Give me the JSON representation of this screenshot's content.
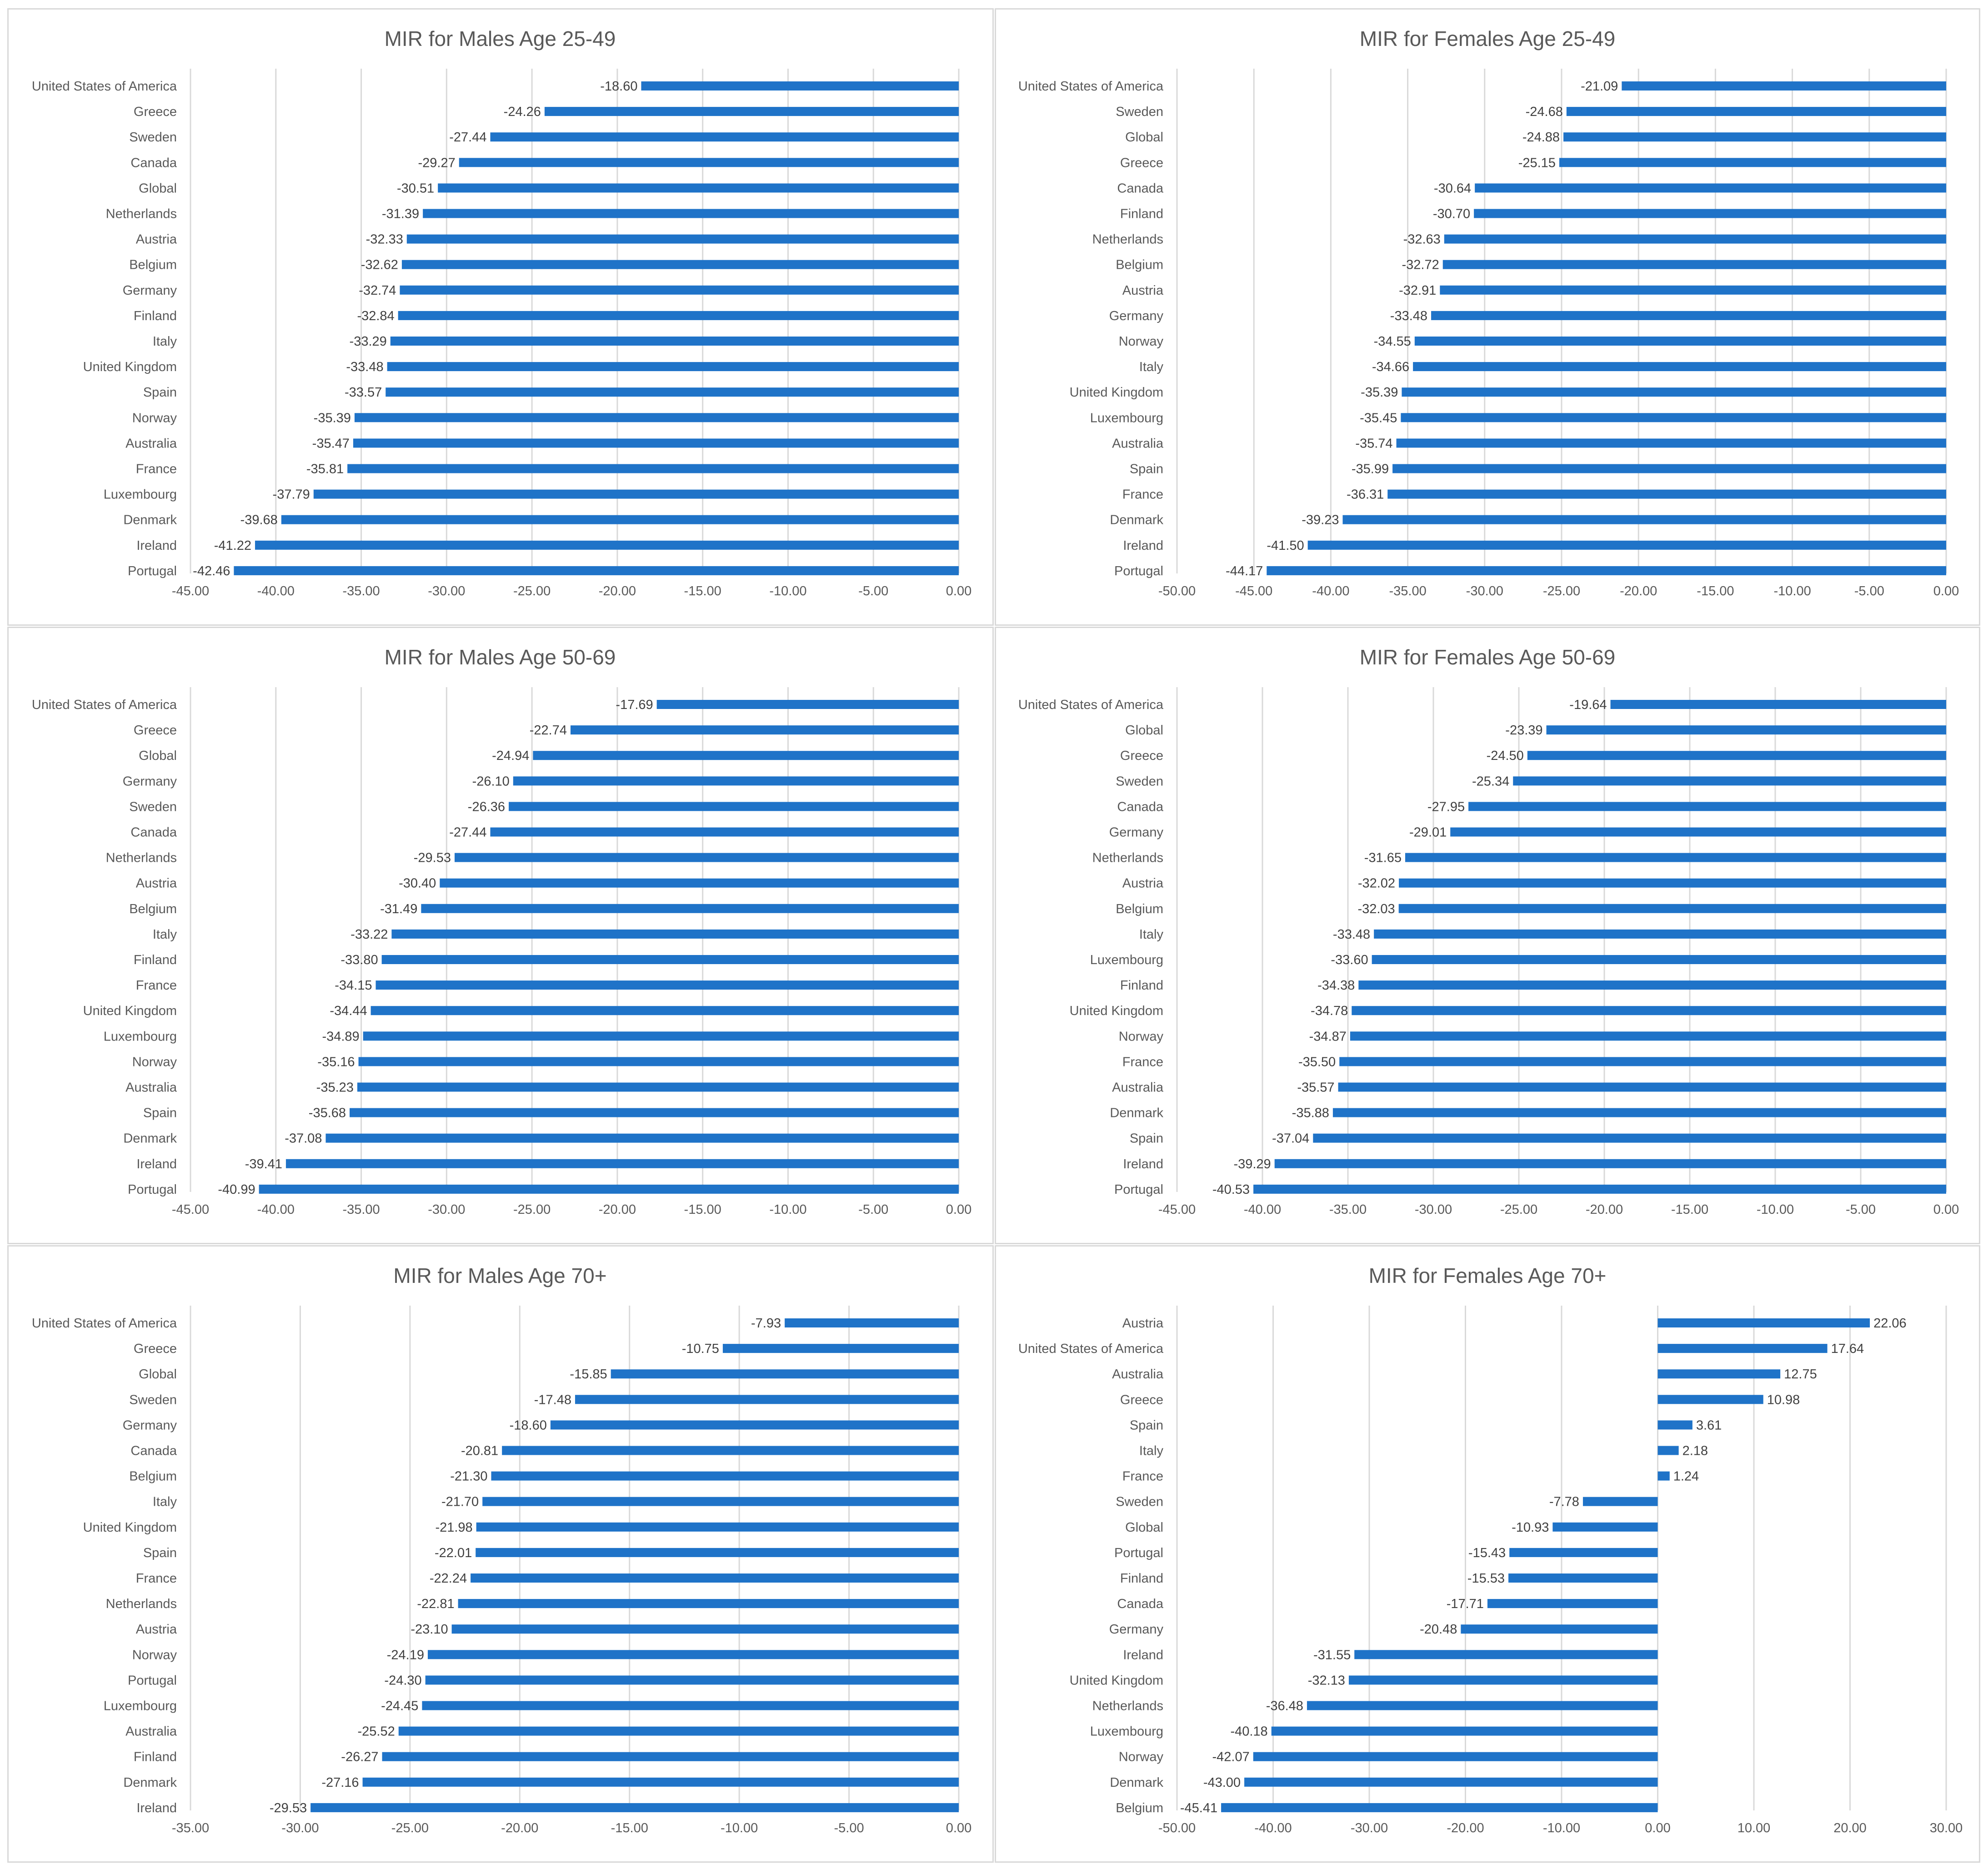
{
  "chart_data": [
    {
      "type": "bar",
      "orientation": "horizontal",
      "title": "MIR for Males Age 25-49",
      "xlim": [
        -45,
        0
      ],
      "ticks": [
        -45,
        -40,
        -35,
        -30,
        -25,
        -20,
        -15,
        -10,
        -5,
        0
      ],
      "tick_labels": [
        "-45.00",
        "-40.00",
        "-35.00",
        "-30.00",
        "-25.00",
        "-20.00",
        "-15.00",
        "-10.00",
        "-5.00",
        "0.00"
      ],
      "grid": true,
      "bar_color": "#1f73c8",
      "categories": [
        "United States of America",
        "Greece",
        "Sweden",
        "Canada",
        "Global",
        "Netherlands",
        "Austria",
        "Belgium",
        "Germany",
        "Finland",
        "Italy",
        "United Kingdom",
        "Spain",
        "Norway",
        "Australia",
        "France",
        "Luxembourg",
        "Denmark",
        "Ireland",
        "Portugal"
      ],
      "values": [
        -18.6,
        -24.26,
        -27.44,
        -29.27,
        -30.51,
        -31.39,
        -32.33,
        -32.62,
        -32.74,
        -32.84,
        -33.29,
        -33.48,
        -33.57,
        -35.39,
        -35.47,
        -35.81,
        -37.79,
        -39.68,
        -41.22,
        -42.46
      ],
      "value_labels": [
        "-18.60",
        "-24.26",
        "-27.44",
        "-29.27",
        "-30.51",
        "-31.39",
        "-32.33",
        "-32.62",
        "-32.74",
        "-32.84",
        "-33.29",
        "-33.48",
        "-33.57",
        "-35.39",
        "-35.47",
        "-35.81",
        "-37.79",
        "-39.68",
        "-41.22",
        "-42.46"
      ]
    },
    {
      "type": "bar",
      "orientation": "horizontal",
      "title": "MIR for Females Age 25-49",
      "xlim": [
        -50,
        0
      ],
      "ticks": [
        -50,
        -45,
        -40,
        -35,
        -30,
        -25,
        -20,
        -15,
        -10,
        -5,
        0
      ],
      "tick_labels": [
        "-50.00",
        "-45.00",
        "-40.00",
        "-35.00",
        "-30.00",
        "-25.00",
        "-20.00",
        "-15.00",
        "-10.00",
        "-5.00",
        "0.00"
      ],
      "grid": true,
      "bar_color": "#1f73c8",
      "categories": [
        "United States of America",
        "Sweden",
        "Global",
        "Greece",
        "Canada",
        "Finland",
        "Netherlands",
        "Belgium",
        "Austria",
        "Germany",
        "Norway",
        "Italy",
        "United Kingdom",
        "Luxembourg",
        "Australia",
        "Spain",
        "France",
        "Denmark",
        "Ireland",
        "Portugal"
      ],
      "values": [
        -21.09,
        -24.68,
        -24.88,
        -25.15,
        -30.64,
        -30.7,
        -32.63,
        -32.72,
        -32.91,
        -33.48,
        -34.55,
        -34.66,
        -35.39,
        -35.45,
        -35.74,
        -35.99,
        -36.31,
        -39.23,
        -41.5,
        -44.17
      ],
      "value_labels": [
        "-21.09",
        "-24.68",
        "-24.88",
        "-25.15",
        "-30.64",
        "-30.70",
        "-32.63",
        "-32.72",
        "-32.91",
        "-33.48",
        "-34.55",
        "-34.66",
        "-35.39",
        "-35.45",
        "-35.74",
        "-35.99",
        "-36.31",
        "-39.23",
        "-41.50",
        "-44.17"
      ]
    },
    {
      "type": "bar",
      "orientation": "horizontal",
      "title": "MIR for Males Age 50-69",
      "xlim": [
        -45,
        0
      ],
      "ticks": [
        -45,
        -40,
        -35,
        -30,
        -25,
        -20,
        -15,
        -10,
        -5,
        0
      ],
      "tick_labels": [
        "-45.00",
        "-40.00",
        "-35.00",
        "-30.00",
        "-25.00",
        "-20.00",
        "-15.00",
        "-10.00",
        "-5.00",
        "0.00"
      ],
      "grid": true,
      "bar_color": "#1f73c8",
      "categories": [
        "United States of America",
        "Greece",
        "Global",
        "Germany",
        "Sweden",
        "Canada",
        "Netherlands",
        "Austria",
        "Belgium",
        "Italy",
        "Finland",
        "France",
        "United Kingdom",
        "Luxembourg",
        "Norway",
        "Australia",
        "Spain",
        "Denmark",
        "Ireland",
        "Portugal"
      ],
      "values": [
        -17.69,
        -22.74,
        -24.94,
        -26.1,
        -26.36,
        -27.44,
        -29.53,
        -30.4,
        -31.49,
        -33.22,
        -33.8,
        -34.15,
        -34.44,
        -34.89,
        -35.16,
        -35.23,
        -35.68,
        -37.08,
        -39.41,
        -40.99
      ],
      "value_labels": [
        "-17.69",
        "-22.74",
        "-24.94",
        "-26.10",
        "-26.36",
        "-27.44",
        "-29.53",
        "-30.40",
        "-31.49",
        "-33.22",
        "-33.80",
        "-34.15",
        "-34.44",
        "-34.89",
        "-35.16",
        "-35.23",
        "-35.68",
        "-37.08",
        "-39.41",
        "-40.99"
      ]
    },
    {
      "type": "bar",
      "orientation": "horizontal",
      "title": "MIR for Females Age 50-69",
      "xlim": [
        -45,
        0
      ],
      "ticks": [
        -45,
        -40,
        -35,
        -30,
        -25,
        -20,
        -15,
        -10,
        -5,
        0
      ],
      "tick_labels": [
        "-45.00",
        "-40.00",
        "-35.00",
        "-30.00",
        "-25.00",
        "-20.00",
        "-15.00",
        "-10.00",
        "-5.00",
        "0.00"
      ],
      "grid": true,
      "bar_color": "#1f73c8",
      "categories": [
        "United States of America",
        "Global",
        "Greece",
        "Sweden",
        "Canada",
        "Germany",
        "Netherlands",
        "Austria",
        "Belgium",
        "Italy",
        "Luxembourg",
        "Finland",
        "United Kingdom",
        "Norway",
        "France",
        "Australia",
        "Denmark",
        "Spain",
        "Ireland",
        "Portugal"
      ],
      "values": [
        -19.64,
        -23.39,
        -24.5,
        -25.34,
        -27.95,
        -29.01,
        -31.65,
        -32.02,
        -32.03,
        -33.48,
        -33.6,
        -34.38,
        -34.78,
        -34.87,
        -35.5,
        -35.57,
        -35.88,
        -37.04,
        -39.29,
        -40.53
      ],
      "value_labels": [
        "-19.64",
        "-23.39",
        "-24.50",
        "-25.34",
        "-27.95",
        "-29.01",
        "-31.65",
        "-32.02",
        "-32.03",
        "-33.48",
        "-33.60",
        "-34.38",
        "-34.78",
        "-34.87",
        "-35.50",
        "-35.57",
        "-35.88",
        "-37.04",
        "-39.29",
        "-40.53"
      ]
    },
    {
      "type": "bar",
      "orientation": "horizontal",
      "title": "MIR for Males Age 70+",
      "xlim": [
        -35,
        0
      ],
      "ticks": [
        -35,
        -30,
        -25,
        -20,
        -15,
        -10,
        -5,
        0
      ],
      "tick_labels": [
        "-35.00",
        "-30.00",
        "-25.00",
        "-20.00",
        "-15.00",
        "-10.00",
        "-5.00",
        "0.00"
      ],
      "grid": true,
      "bar_color": "#1f73c8",
      "categories": [
        "United States of America",
        "Greece",
        "Global",
        "Sweden",
        "Germany",
        "Canada",
        "Belgium",
        "Italy",
        "United Kingdom",
        "Spain",
        "France",
        "Netherlands",
        "Austria",
        "Norway",
        "Portugal",
        "Luxembourg",
        "Australia",
        "Finland",
        "Denmark",
        "Ireland"
      ],
      "values": [
        -7.93,
        -10.75,
        -15.85,
        -17.48,
        -18.6,
        -20.81,
        -21.3,
        -21.7,
        -21.98,
        -22.01,
        -22.24,
        -22.81,
        -23.1,
        -24.19,
        -24.3,
        -24.45,
        -25.52,
        -26.27,
        -27.16,
        -29.53
      ],
      "value_labels": [
        "-7.93",
        "-10.75",
        "-15.85",
        "-17.48",
        "-18.60",
        "-20.81",
        "-21.30",
        "-21.70",
        "-21.98",
        "-22.01",
        "-22.24",
        "-22.81",
        "-23.10",
        "-24.19",
        "-24.30",
        "-24.45",
        "-25.52",
        "-26.27",
        "-27.16",
        "-29.53"
      ]
    },
    {
      "type": "bar",
      "orientation": "horizontal",
      "title": "MIR for Females Age 70+",
      "xlim": [
        -50,
        30
      ],
      "ticks": [
        -50,
        -40,
        -30,
        -20,
        -10,
        0,
        10,
        20,
        30
      ],
      "tick_labels": [
        "-50.00",
        "-40.00",
        "-30.00",
        "-20.00",
        "-10.00",
        "0.00",
        "10.00",
        "20.00",
        "30.00"
      ],
      "grid": true,
      "bar_color": "#1f73c8",
      "categories": [
        "Austria",
        "United States of America",
        "Australia",
        "Greece",
        "Spain",
        "Italy",
        "France",
        "Sweden",
        "Global",
        "Portugal",
        "Finland",
        "Canada",
        "Germany",
        "Ireland",
        "United Kingdom",
        "Netherlands",
        "Luxembourg",
        "Norway",
        "Denmark",
        "Belgium"
      ],
      "values": [
        22.06,
        17.64,
        12.75,
        10.98,
        3.61,
        2.18,
        1.24,
        -7.78,
        -10.93,
        -15.43,
        -15.53,
        -17.71,
        -20.48,
        -31.55,
        -32.13,
        -36.48,
        -40.18,
        -42.07,
        -43.0,
        -45.41
      ],
      "value_labels": [
        "22.06",
        "17.64",
        "12.75",
        "10.98",
        "3.61",
        "2.18",
        "1.24",
        "-7.78",
        "-10.93",
        "-15.43",
        "-15.53",
        "-17.71",
        "-20.48",
        "-31.55",
        "-32.13",
        "-36.48",
        "-40.18",
        "-42.07",
        "-43.00",
        "-45.41"
      ]
    }
  ]
}
